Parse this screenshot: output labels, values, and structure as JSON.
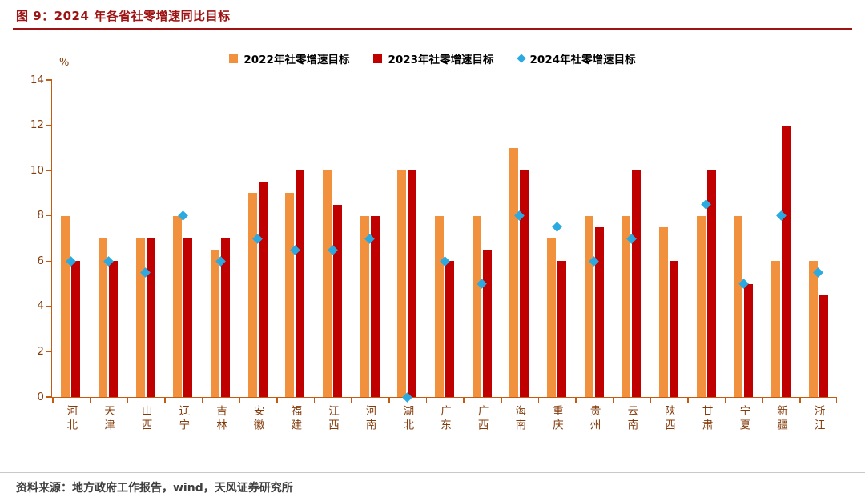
{
  "header": {
    "title": "图 9：2024 年各省社零增速同比目标"
  },
  "footer": {
    "source": "资料来源：地方政府工作报告，wind，天风证券研究所"
  },
  "colors": {
    "accent_red": "#9E1313",
    "axis_orange": "#C55A11",
    "tick_label_brown": "#843C0C",
    "bar_2022_orange": "#F2913D",
    "bar_2023_red": "#C00000",
    "scatter_2024_cyan": "#2AAAE1"
  },
  "chart_data": {
    "type": "bar",
    "title": "图 9：2024 年各省社零增速同比目标",
    "unit_label": "%",
    "xlabel": "",
    "ylabel": "%",
    "ylim": [
      0,
      14
    ],
    "yticks": [
      0,
      2,
      4,
      6,
      8,
      10,
      12,
      14
    ],
    "grid": false,
    "legend_position": "top",
    "categories": [
      "河北",
      "天津",
      "山西",
      "辽宁",
      "吉林",
      "安徽",
      "福建",
      "江西",
      "河南",
      "湖北",
      "广东",
      "广西",
      "海南",
      "重庆",
      "贵州",
      "云南",
      "陕西",
      "甘肃",
      "宁夏",
      "新疆",
      "浙江"
    ],
    "series": [
      {
        "id": "2022",
        "name": "2022年社零增速目标",
        "type": "bar",
        "color": "#F2913D",
        "values": [
          8,
          7,
          7,
          8,
          6.5,
          9,
          9,
          10,
          8,
          10,
          8,
          8,
          11,
          7,
          8,
          8,
          7.5,
          8,
          8,
          6,
          6
        ]
      },
      {
        "id": "2023",
        "name": "2023年社零增速目标",
        "type": "bar",
        "color": "#C00000",
        "values": [
          6,
          6,
          7,
          7,
          7,
          9.5,
          10,
          8.5,
          8,
          10,
          6,
          6.5,
          10,
          6,
          7.5,
          10,
          6,
          10,
          5,
          12,
          4.5
        ]
      },
      {
        "id": "2024",
        "name": "2024年社零增速目标",
        "type": "scatter",
        "color": "#2AAAE1",
        "values": [
          6,
          6,
          5.5,
          8,
          6,
          7,
          6.5,
          6.5,
          7,
          0,
          6,
          5,
          8,
          7.5,
          6,
          7,
          null,
          8.5,
          5,
          8,
          5.5
        ]
      }
    ]
  }
}
